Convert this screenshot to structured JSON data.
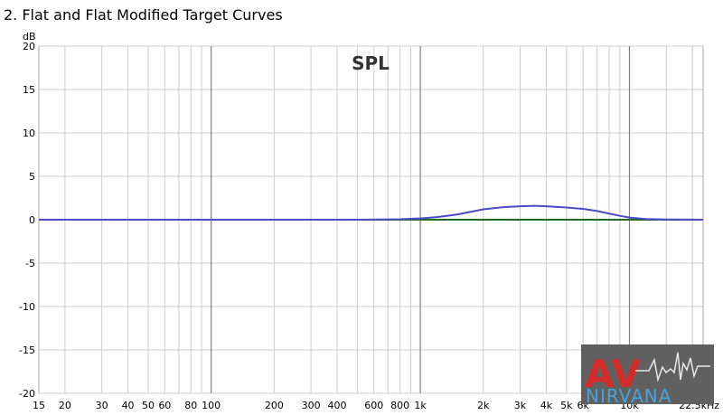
{
  "page": {
    "title": "2. Flat and Flat Modified Target Curves"
  },
  "logo": {
    "text_a": "AV",
    "text_b": "NIRVANA"
  },
  "chart_data": {
    "type": "line",
    "title": "SPL",
    "ylabel": "dB",
    "xlabel": "",
    "x_scale": "log",
    "xlim": [
      15,
      22500
    ],
    "ylim": [
      -20,
      20
    ],
    "grid": true,
    "x_tick_labels": [
      {
        "v": 15,
        "t": "15"
      },
      {
        "v": 20,
        "t": "20"
      },
      {
        "v": 30,
        "t": "30"
      },
      {
        "v": 40,
        "t": "40"
      },
      {
        "v": 50,
        "t": "50"
      },
      {
        "v": 60,
        "t": "60"
      },
      {
        "v": 80,
        "t": "80"
      },
      {
        "v": 100,
        "t": "100"
      },
      {
        "v": 200,
        "t": "200"
      },
      {
        "v": 300,
        "t": "300"
      },
      {
        "v": 400,
        "t": "400"
      },
      {
        "v": 600,
        "t": "600"
      },
      {
        "v": 800,
        "t": "800"
      },
      {
        "v": 1000,
        "t": "1k"
      },
      {
        "v": 2000,
        "t": "2k"
      },
      {
        "v": 3000,
        "t": "3k"
      },
      {
        "v": 4000,
        "t": "4k"
      },
      {
        "v": 5000,
        "t": "5k"
      },
      {
        "v": 6000,
        "t": "6k"
      },
      {
        "v": 10000,
        "t": "10k"
      },
      {
        "v": 22500,
        "t": "22.5kHz"
      }
    ],
    "y_tick_labels": [
      {
        "v": 20,
        "t": "20"
      },
      {
        "v": 15,
        "t": "15"
      },
      {
        "v": 10,
        "t": "10"
      },
      {
        "v": 5,
        "t": "5"
      },
      {
        "v": 0,
        "t": "0"
      },
      {
        "v": -5,
        "t": "-5"
      },
      {
        "v": -10,
        "t": "-10"
      },
      {
        "v": -15,
        "t": "-15"
      },
      {
        "v": -20,
        "t": "-20"
      }
    ],
    "series": [
      {
        "color": "#1f6b1f",
        "x": [
          15,
          22500
        ],
        "y": [
          0,
          0
        ]
      },
      {
        "color": "#4b4bc8",
        "x": [
          15,
          500,
          800,
          1000,
          1200,
          1500,
          2000,
          2500,
          3000,
          3500,
          4000,
          5000,
          6000,
          7000,
          8000,
          9000,
          10000,
          12000,
          15000,
          22500
        ],
        "y": [
          0,
          0,
          0.05,
          0.15,
          0.3,
          0.6,
          1.2,
          1.45,
          1.55,
          1.6,
          1.55,
          1.4,
          1.25,
          1.0,
          0.7,
          0.45,
          0.25,
          0.08,
          0.02,
          0
        ]
      }
    ]
  }
}
